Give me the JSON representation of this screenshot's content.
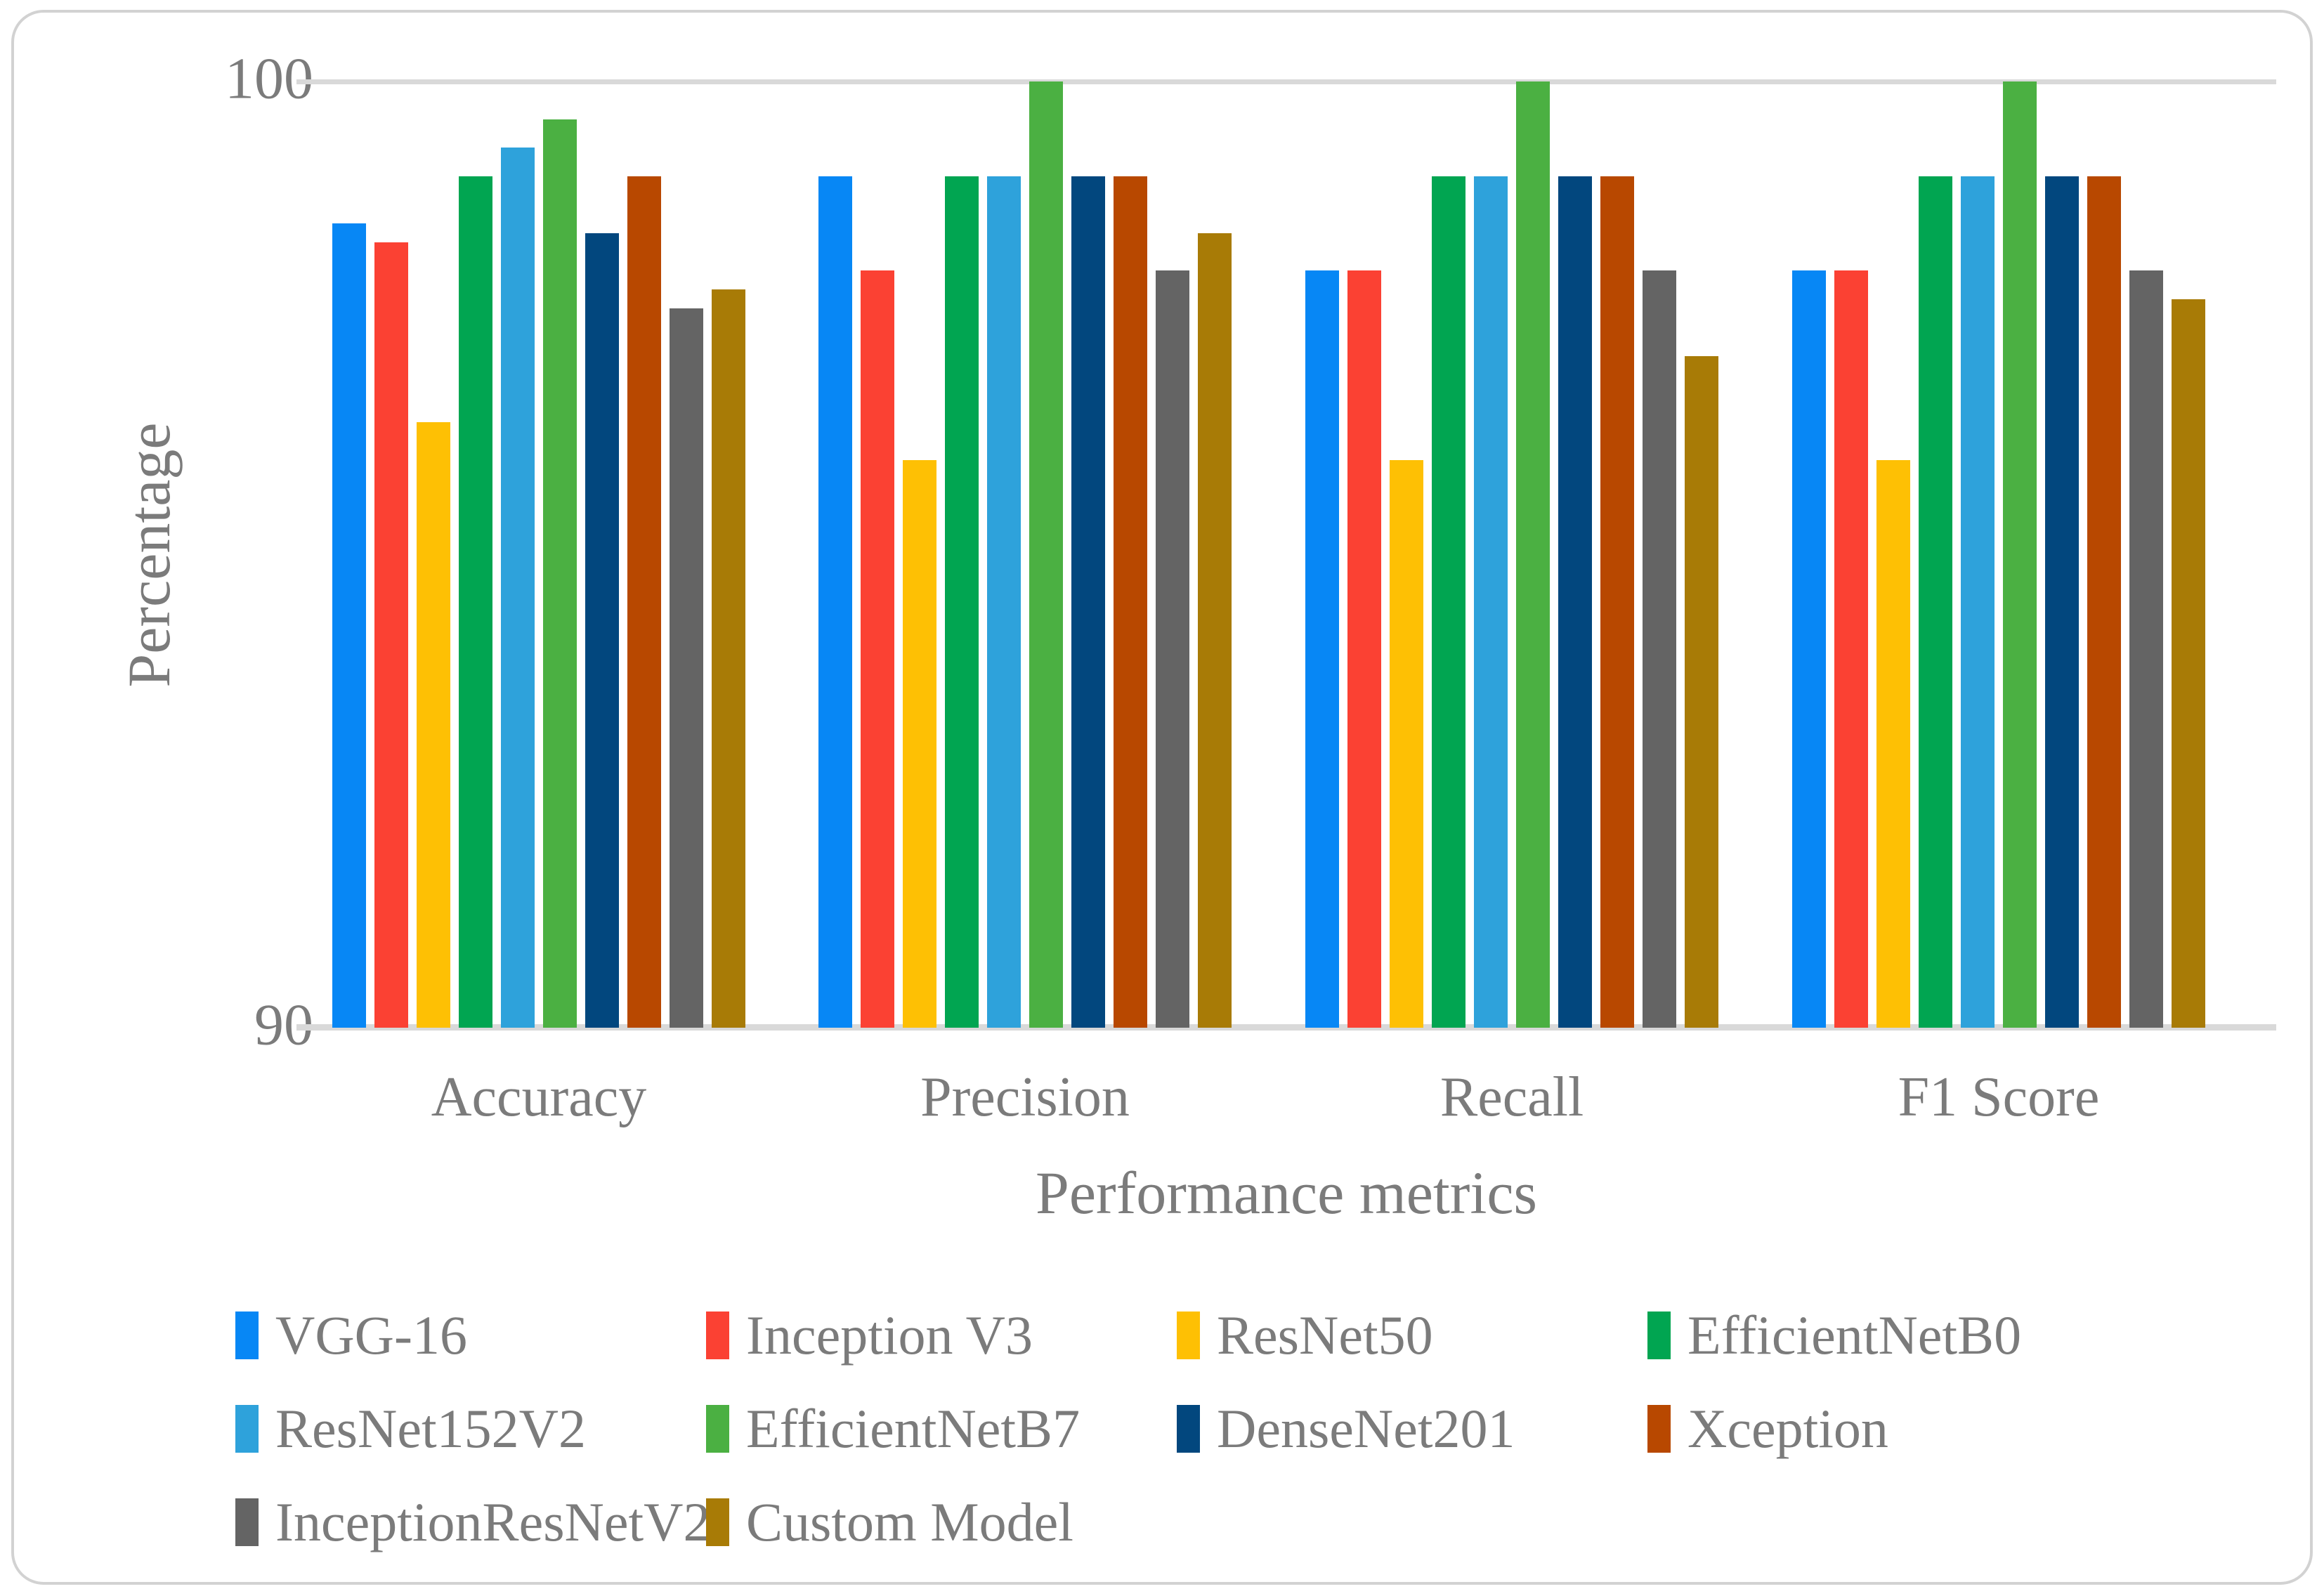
{
  "axis": {
    "y_top_tick": "100",
    "y_bottom_tick": "90",
    "y_title": "Percentage",
    "x_title": "Performance metrics"
  },
  "chart_data": {
    "type": "bar",
    "title": "",
    "xlabel": "Performance metrics",
    "ylabel": "Percentage",
    "ylim": [
      90,
      100
    ],
    "yticks": [
      90,
      100
    ],
    "gridlines": "horizontal at 100 and axis baseline at 90 only",
    "legend_position": "bottom-left, 3 rows",
    "categories": [
      "Accuracy",
      "Precision",
      "Recall",
      "F1 Score"
    ],
    "series": [
      {
        "name": "VGG-16",
        "color": "#0787f5",
        "values": [
          98.5,
          99.0,
          98.0,
          98.0
        ]
      },
      {
        "name": "Inception V3",
        "color": "#fb4133",
        "values": [
          98.3,
          98.0,
          98.0,
          98.0
        ]
      },
      {
        "name": "ResNet50",
        "color": "#fec004",
        "values": [
          96.4,
          96.0,
          96.0,
          96.0
        ]
      },
      {
        "name": "EfficientNetB0",
        "color": "#01a551",
        "values": [
          99.0,
          99.0,
          99.0,
          99.0
        ]
      },
      {
        "name": "ResNet152V2",
        "color": "#2ea2db",
        "values": [
          99.3,
          99.0,
          99.0,
          99.0
        ]
      },
      {
        "name": "EfficientNetB7",
        "color": "#4bb042",
        "values": [
          99.6,
          100.0,
          100.0,
          100.0
        ]
      },
      {
        "name": "DenseNet201",
        "color": "#02477e",
        "values": [
          98.4,
          99.0,
          99.0,
          99.0
        ]
      },
      {
        "name": "Xception",
        "color": "#b84800",
        "values": [
          99.0,
          99.0,
          99.0,
          99.0
        ]
      },
      {
        "name": "InceptionResNetV2",
        "color": "#646464",
        "values": [
          97.6,
          98.0,
          98.0,
          98.0
        ]
      },
      {
        "name": "Custom Model",
        "color": "#a87b06",
        "values": [
          97.8,
          98.4,
          97.1,
          97.7
        ]
      }
    ]
  }
}
